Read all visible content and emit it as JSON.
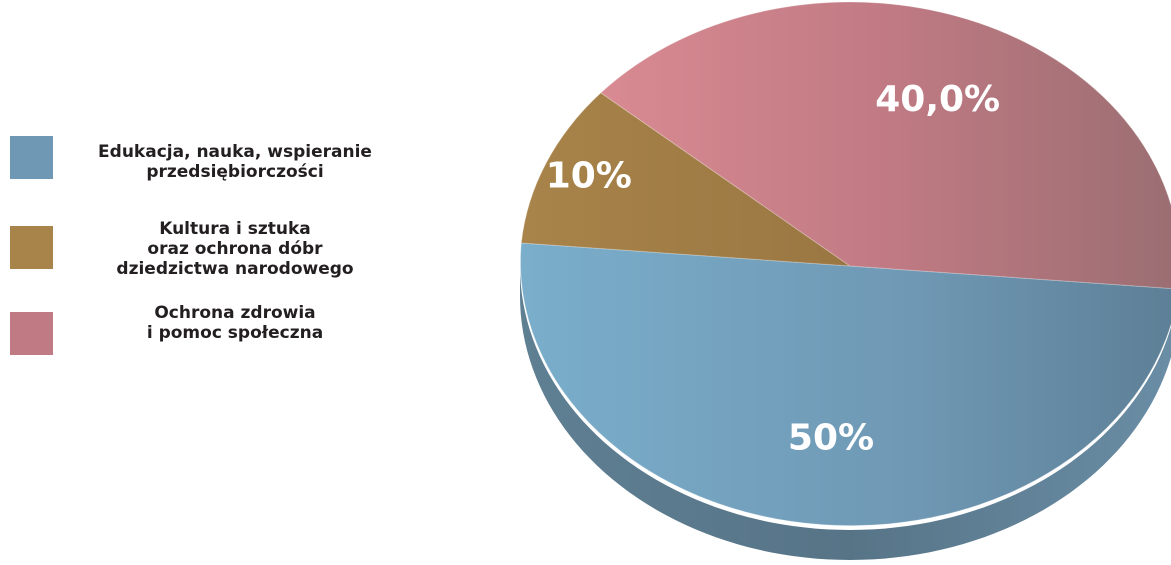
{
  "chart_data": {
    "type": "pie",
    "categories": [
      "Edukacja, nauka, wspieranie\nprzedsiębiorczości",
      "Kultura i sztuka\noraz ochrona dóbr\ndziedzictwa narodowego",
      "Ochrona zdrowia\ni pomoc społeczna"
    ],
    "values": [
      50,
      10,
      40
    ],
    "data_labels": [
      "50%",
      "10%",
      "40,0%"
    ],
    "colors": [
      "#6f98b4",
      "#a8844a",
      "#c07a83"
    ],
    "legend_position": "left",
    "style": "3d"
  }
}
